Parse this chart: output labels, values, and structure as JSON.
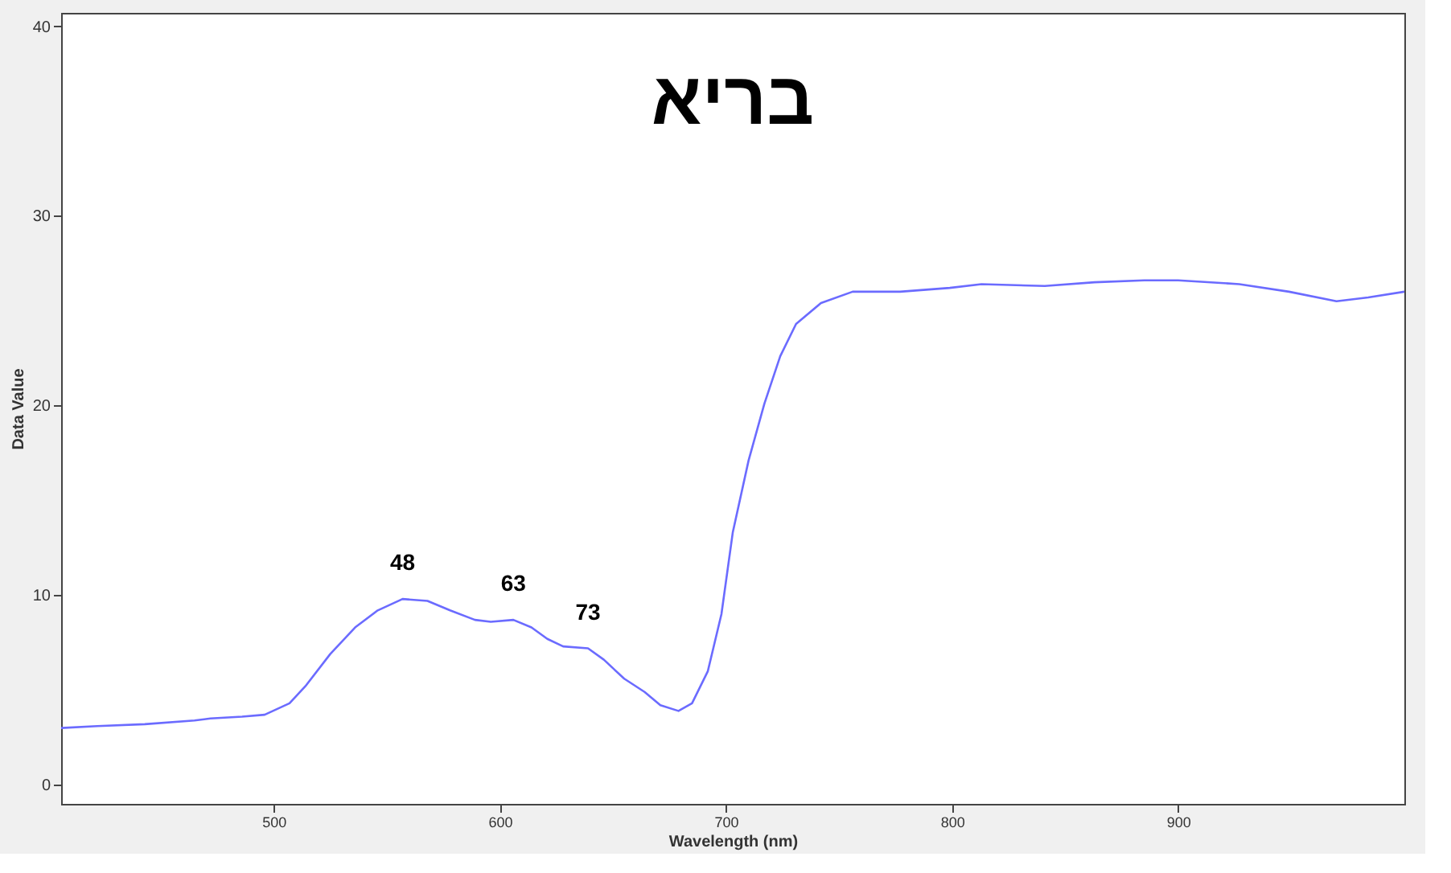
{
  "chart_data": {
    "type": "line",
    "title": "בריא",
    "xlabel": "Wavelength (nm)",
    "ylabel": "Data Value",
    "xlim": [
      406,
      1000
    ],
    "ylim": [
      -1,
      40.7
    ],
    "xticks": [
      500,
      600,
      700,
      800,
      900
    ],
    "yticks": [
      0,
      10,
      20,
      30,
      40
    ],
    "grid": false,
    "marker": "none",
    "line_style": "solid",
    "series": [
      {
        "color": "#6b6bff",
        "x": [
          406,
          422,
          443,
          465,
          472,
          486,
          496,
          507,
          514,
          525,
          536,
          546,
          557,
          568,
          578,
          589,
          596,
          606,
          614,
          621,
          628,
          639,
          646,
          655,
          664,
          671,
          679,
          685,
          692,
          698,
          703,
          710,
          717,
          724,
          731,
          742,
          756,
          777,
          799,
          813,
          841,
          863,
          885,
          900,
          927,
          949,
          970,
          984,
          1000
        ],
        "values": [
          3.0,
          3.1,
          3.2,
          3.4,
          3.5,
          3.6,
          3.7,
          4.3,
          5.2,
          6.9,
          8.3,
          9.2,
          9.8,
          9.7,
          9.2,
          8.7,
          8.6,
          8.7,
          8.3,
          7.7,
          7.3,
          7.2,
          6.6,
          5.6,
          4.9,
          4.2,
          3.9,
          4.3,
          6.0,
          9.0,
          13.3,
          17.1,
          20.1,
          22.6,
          24.3,
          25.4,
          26.0,
          26.0,
          26.2,
          26.4,
          26.3,
          26.5,
          26.6,
          26.6,
          26.4,
          26.0,
          25.5,
          25.7,
          26.0
        ]
      }
    ],
    "annotations": [
      {
        "text": "48",
        "x": 557,
        "y": 9.8
      },
      {
        "text": "63",
        "x": 606,
        "y": 8.7
      },
      {
        "text": "73",
        "x": 639,
        "y": 7.2
      }
    ]
  }
}
